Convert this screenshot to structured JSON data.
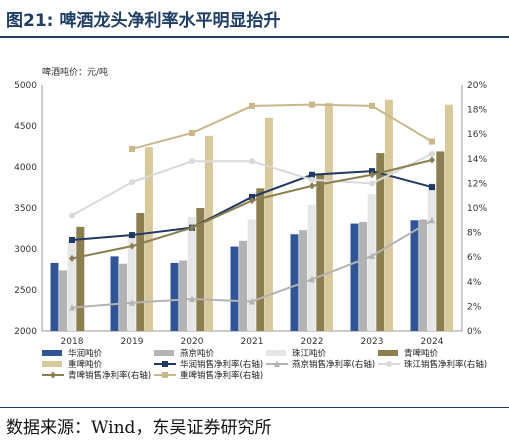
{
  "figure": {
    "number": "图21:",
    "title": "啤酒龙头净利率水平明显抬升",
    "source": "数据来源：Wind，东吴证券研究所"
  },
  "chart_data": {
    "type": "bar",
    "title": "",
    "ylabel": "啤酒吨价：元/吨",
    "categories": [
      "2018",
      "2019",
      "2020",
      "2021",
      "2022",
      "2023",
      "2024"
    ],
    "ylim": [
      2000,
      5000
    ],
    "y_ticks": [
      "2000",
      "2500",
      "3000",
      "3500",
      "4000",
      "4500",
      "5000"
    ],
    "y2lim": [
      0,
      20
    ],
    "y2_ticks": [
      "0%",
      "2%",
      "4%",
      "6%",
      "8%",
      "10%",
      "12%",
      "14%",
      "16%",
      "18%",
      "20%"
    ],
    "grid": false,
    "legend_position": "bottom",
    "bar_series": [
      {
        "name": "华润吨价",
        "color": "#2f5597",
        "values": [
          2830,
          2910,
          2830,
          3030,
          3180,
          3310,
          3350
        ]
      },
      {
        "name": "燕京吨价",
        "color": "#b3b3b3",
        "values": [
          2740,
          2820,
          2860,
          3100,
          3230,
          3330,
          3360
        ]
      },
      {
        "name": "珠江吨价",
        "color": "#e6e6e6",
        "values": [
          3100,
          3170,
          3390,
          3360,
          3540,
          3670,
          3800
        ]
      },
      {
        "name": "青啤吨价",
        "color": "#8c7f4e",
        "values": [
          3270,
          3440,
          3500,
          3740,
          3910,
          4170,
          4190
        ]
      },
      {
        "name": "重啤吨价",
        "color": "#d8c99b",
        "values": [
          null,
          4240,
          4380,
          4600,
          4780,
          4820,
          4760
        ]
      }
    ],
    "line_series": [
      {
        "name": "华润销售净利率(右轴)",
        "color": "#1f3864",
        "marker": "square",
        "values": [
          7.4,
          7.8,
          8.4,
          10.9,
          12.7,
          13.0,
          11.7
        ]
      },
      {
        "name": "燕京销售净利率(右轴)",
        "color": "#b3b3b3",
        "marker": "triangle",
        "values": [
          1.9,
          2.3,
          2.6,
          2.4,
          4.2,
          6.1,
          9.0
        ]
      },
      {
        "name": "珠江销售净利率(右轴)",
        "color": "#d9d9d9",
        "marker": "circle",
        "values": [
          9.4,
          12.1,
          13.8,
          13.8,
          12.3,
          12.0,
          14.4
        ]
      },
      {
        "name": "青啤销售净利率(右轴)",
        "color": "#8c7f4e",
        "marker": "diamond",
        "values": [
          5.9,
          6.9,
          8.4,
          10.6,
          11.8,
          12.7,
          13.9
        ]
      },
      {
        "name": "重啤销售净利率(右轴)",
        "color": "#c8b88a",
        "marker": "square",
        "values": [
          null,
          14.8,
          16.1,
          18.3,
          18.4,
          18.3,
          15.4
        ]
      }
    ]
  }
}
